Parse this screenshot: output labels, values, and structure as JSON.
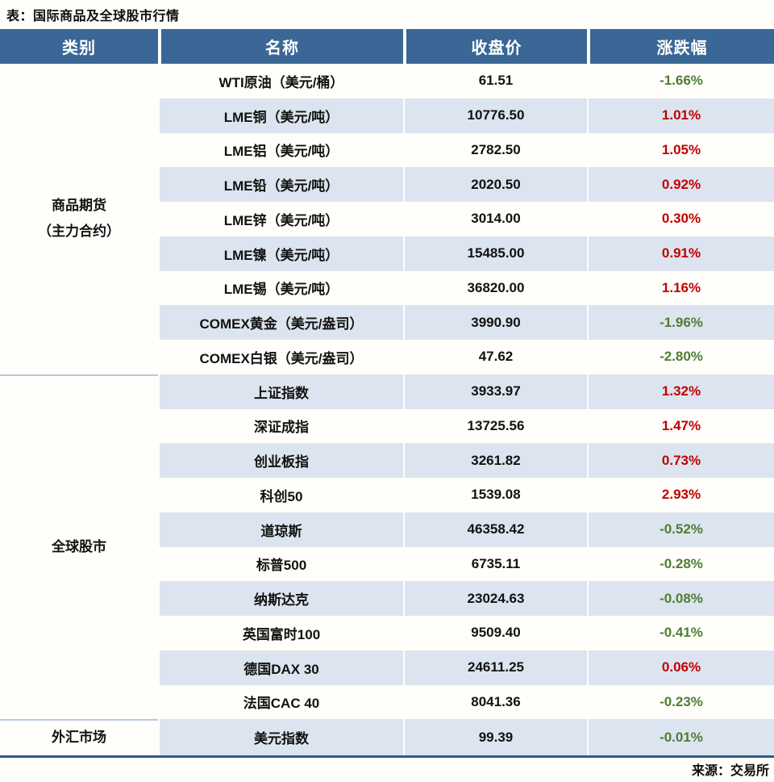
{
  "title": "表：国际商品及全球股市行情",
  "source": "来源：交易所",
  "colors": {
    "header_bg": "#3a6795",
    "stripe_bg": "#dce4ef",
    "up": "#c00000",
    "down": "#4f7d32",
    "group_divider": "#b9c9db",
    "bottom_rule": "#2f5c87"
  },
  "table": {
    "headers": [
      "类别",
      "名称",
      "收盘价",
      "涨跌幅"
    ],
    "groups": [
      {
        "category_lines": [
          "商品期货",
          "（主力合约）"
        ],
        "rows": [
          {
            "name": "WTI原油（美元/桶）",
            "close": "61.51",
            "change": "-1.66%",
            "direction": "down"
          },
          {
            "name": "LME铜（美元/吨）",
            "close": "10776.50",
            "change": "1.01%",
            "direction": "up"
          },
          {
            "name": "LME铝（美元/吨）",
            "close": "2782.50",
            "change": "1.05%",
            "direction": "up"
          },
          {
            "name": "LME铅（美元/吨）",
            "close": "2020.50",
            "change": "0.92%",
            "direction": "up"
          },
          {
            "name": "LME锌（美元/吨）",
            "close": "3014.00",
            "change": "0.30%",
            "direction": "up"
          },
          {
            "name": "LME镍（美元/吨）",
            "close": "15485.00",
            "change": "0.91%",
            "direction": "up"
          },
          {
            "name": "LME锡（美元/吨）",
            "close": "36820.00",
            "change": "1.16%",
            "direction": "up"
          },
          {
            "name": "COMEX黄金（美元/盎司）",
            "close": "3990.90",
            "change": "-1.96%",
            "direction": "down"
          },
          {
            "name": "COMEX白银（美元/盎司）",
            "close": "47.62",
            "change": "-2.80%",
            "direction": "down"
          }
        ]
      },
      {
        "category_lines": [
          "全球股市"
        ],
        "rows": [
          {
            "name": "上证指数",
            "close": "3933.97",
            "change": "1.32%",
            "direction": "up"
          },
          {
            "name": "深证成指",
            "close": "13725.56",
            "change": "1.47%",
            "direction": "up"
          },
          {
            "name": "创业板指",
            "close": "3261.82",
            "change": "0.73%",
            "direction": "up"
          },
          {
            "name": "科创50",
            "close": "1539.08",
            "change": "2.93%",
            "direction": "up"
          },
          {
            "name": "道琼斯",
            "close": "46358.42",
            "change": "-0.52%",
            "direction": "down"
          },
          {
            "name": "标普500",
            "close": "6735.11",
            "change": "-0.28%",
            "direction": "down"
          },
          {
            "name": "纳斯达克",
            "close": "23024.63",
            "change": "-0.08%",
            "direction": "down"
          },
          {
            "name": "英国富时100",
            "close": "9509.40",
            "change": "-0.41%",
            "direction": "down"
          },
          {
            "name": "德国DAX 30",
            "close": "24611.25",
            "change": "0.06%",
            "direction": "up"
          },
          {
            "name": "法国CAC 40",
            "close": "8041.36",
            "change": "-0.23%",
            "direction": "down"
          }
        ]
      },
      {
        "category_lines": [
          "外汇市场"
        ],
        "rows": [
          {
            "name": "美元指数",
            "close": "99.39",
            "change": "-0.01%",
            "direction": "down"
          }
        ]
      }
    ]
  }
}
